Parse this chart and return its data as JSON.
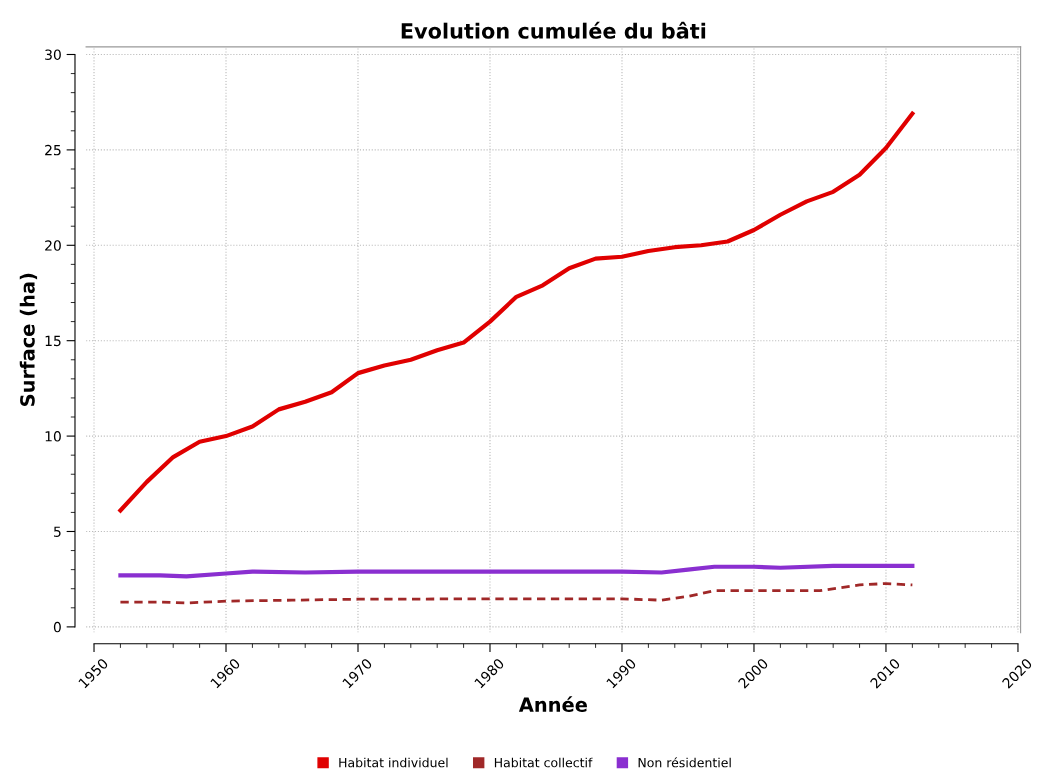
{
  "chart_data": {
    "type": "line",
    "title": "Evolution cumulée du bâti",
    "xlabel": "Année",
    "ylabel": "Surface (ha)",
    "xlim": [
      1949.4,
      2020.2
    ],
    "xticks": [
      1950,
      1960,
      1970,
      1980,
      1990,
      2000,
      2010,
      2020
    ],
    "ylim": [
      -0.3,
      30.4
    ],
    "yticks": [
      0,
      5,
      10,
      15,
      20,
      25,
      30
    ],
    "grid": true,
    "legend": "bottom",
    "marker": "none",
    "series": [
      {
        "name": "Habitat individuel",
        "color": "#e00000",
        "line_style": "solid",
        "x": [
          1952,
          1954,
          1956,
          1958,
          1960,
          1962,
          1964,
          1966,
          1968,
          1970,
          1972,
          1974,
          1976,
          1978,
          1980,
          1982,
          1984,
          1986,
          1988,
          1990,
          1992,
          1994,
          1996,
          1998,
          2000,
          2002,
          2004,
          2006,
          2008,
          2010,
          2012
        ],
        "values": [
          6.1,
          7.6,
          8.9,
          9.7,
          10.0,
          10.5,
          11.4,
          11.8,
          12.3,
          13.3,
          13.7,
          14.0,
          14.5,
          14.9,
          16.0,
          17.3,
          17.9,
          18.8,
          19.3,
          19.4,
          19.7,
          19.9,
          20.0,
          20.2,
          20.8,
          21.6,
          22.3,
          22.8,
          23.7,
          25.1,
          26.9
        ]
      },
      {
        "name": "Habitat collectif",
        "color": "#a02828",
        "line_style": "dashed",
        "x": [
          1952,
          1955,
          1957,
          1960,
          1965,
          1970,
          1980,
          1990,
          1993,
          1995,
          1997,
          2000,
          2005,
          2008,
          2010,
          2012
        ],
        "values": [
          1.3,
          1.3,
          1.25,
          1.35,
          1.4,
          1.45,
          1.47,
          1.47,
          1.4,
          1.6,
          1.9,
          1.9,
          1.9,
          2.2,
          2.27,
          2.2
        ]
      },
      {
        "name": "Non résidentiel",
        "color": "#8a2fd0",
        "line_style": "solid",
        "x": [
          1952,
          1955,
          1957,
          1960,
          1962,
          1966,
          1970,
          1980,
          1990,
          1993,
          1995,
          1997,
          2000,
          2002,
          2006,
          2012
        ],
        "values": [
          2.7,
          2.7,
          2.65,
          2.8,
          2.9,
          2.85,
          2.9,
          2.9,
          2.9,
          2.85,
          3.0,
          3.15,
          3.15,
          3.1,
          3.2,
          3.2
        ]
      }
    ]
  }
}
